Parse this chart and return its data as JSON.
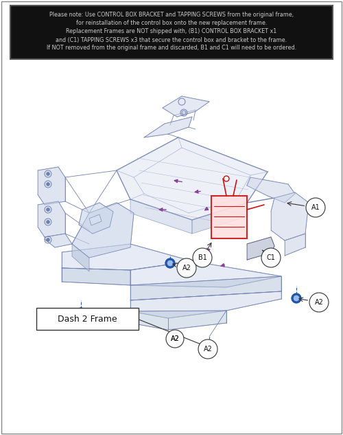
{
  "notice_text": [
    "Please note: Use CONTROL BOX BRACKET and TAPPING SCREWS from the original frame,",
    "for reinstallation of the control box onto the new replacement frame.",
    "Replacement Frames are NOT shipped with, (B1) CONTROL BOX BRACKET x1",
    "and (C1) TAPPING SCREWS x3 that secure the control box and bracket to the frame.",
    "If NOT removed from the original frame and discarded, B1 and C1 will need to be ordered."
  ],
  "notice_bg": "#111111",
  "notice_text_color": "#cccccc",
  "frame_color": "#7080b0",
  "frame_fill": "#d8dff0",
  "red_color": "#cc1111",
  "purple_color": "#884499",
  "blue_color": "#2255aa",
  "dash2_frame_label": "Dash 2 Frame",
  "bg_color": "#ffffff"
}
